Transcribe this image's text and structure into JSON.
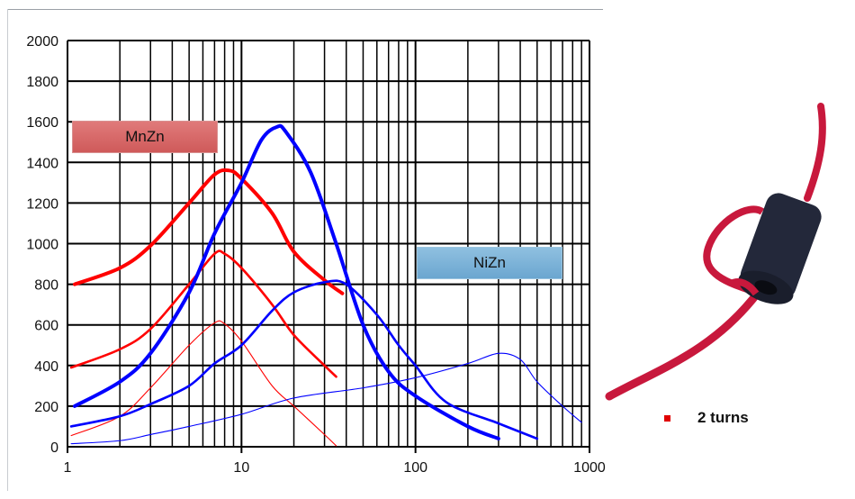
{
  "chart_data": {
    "type": "line",
    "x_scale": "log",
    "xlim": [
      1,
      1000
    ],
    "ylim": [
      0,
      2000
    ],
    "x_ticks": [
      "1",
      "10",
      "100",
      "1000"
    ],
    "y_ticks": [
      "0",
      "200",
      "400",
      "600",
      "800",
      "1000",
      "1200",
      "1400",
      "1600",
      "1800",
      "2000"
    ],
    "grid": true,
    "annotations": [
      "MnZn",
      "NiZn"
    ],
    "series": [
      {
        "color": "#ff0000",
        "width": "thick",
        "points": [
          [
            1.1,
            800
          ],
          [
            2,
            880
          ],
          [
            3,
            990
          ],
          [
            5,
            1200
          ],
          [
            7,
            1340
          ],
          [
            8.5,
            1360
          ],
          [
            10,
            1320
          ],
          [
            15,
            1150
          ],
          [
            20,
            960
          ],
          [
            30,
            820
          ],
          [
            38,
            755
          ]
        ]
      },
      {
        "color": "#ff0000",
        "width": "medium",
        "points": [
          [
            1.05,
            390
          ],
          [
            2,
            480
          ],
          [
            3,
            580
          ],
          [
            5,
            800
          ],
          [
            7,
            950
          ],
          [
            8,
            950
          ],
          [
            10,
            880
          ],
          [
            15,
            700
          ],
          [
            20,
            550
          ],
          [
            30,
            400
          ],
          [
            35,
            345
          ]
        ]
      },
      {
        "color": "#ff0000",
        "width": "thin",
        "points": [
          [
            1.05,
            55
          ],
          [
            2,
            150
          ],
          [
            3,
            290
          ],
          [
            5,
            500
          ],
          [
            7,
            610
          ],
          [
            8,
            605
          ],
          [
            10,
            520
          ],
          [
            15,
            300
          ],
          [
            20,
            200
          ],
          [
            30,
            60
          ],
          [
            35,
            5
          ]
        ]
      },
      {
        "color": "#0000ff",
        "width": "thick",
        "points": [
          [
            1.1,
            200
          ],
          [
            2,
            320
          ],
          [
            3,
            460
          ],
          [
            5,
            760
          ],
          [
            7,
            1050
          ],
          [
            10,
            1300
          ],
          [
            13,
            1510
          ],
          [
            16,
            1575
          ],
          [
            18,
            1550
          ],
          [
            25,
            1350
          ],
          [
            35,
            1000
          ],
          [
            50,
            600
          ],
          [
            70,
            370
          ],
          [
            100,
            250
          ],
          [
            200,
            100
          ],
          [
            300,
            40
          ]
        ]
      },
      {
        "color": "#0000ff",
        "width": "medium",
        "points": [
          [
            1.05,
            100
          ],
          [
            2,
            150
          ],
          [
            3,
            210
          ],
          [
            5,
            300
          ],
          [
            7,
            410
          ],
          [
            10,
            500
          ],
          [
            15,
            670
          ],
          [
            20,
            760
          ],
          [
            30,
            810
          ],
          [
            40,
            800
          ],
          [
            60,
            650
          ],
          [
            80,
            500
          ],
          [
            100,
            400
          ],
          [
            150,
            220
          ],
          [
            300,
            115
          ],
          [
            500,
            40
          ]
        ]
      },
      {
        "color": "#0000ff",
        "width": "thin",
        "points": [
          [
            1.05,
            15
          ],
          [
            2,
            30
          ],
          [
            3,
            60
          ],
          [
            5,
            100
          ],
          [
            10,
            160
          ],
          [
            20,
            240
          ],
          [
            50,
            290
          ],
          [
            100,
            340
          ],
          [
            200,
            410
          ],
          [
            300,
            460
          ],
          [
            400,
            430
          ],
          [
            500,
            320
          ],
          [
            700,
            200
          ],
          [
            900,
            120
          ]
        ]
      }
    ]
  },
  "labels": {
    "mnzn": "MnZn",
    "nizn": "NiZn"
  },
  "photo": {
    "caption": "2 turns",
    "bullet_color": "#e00000"
  }
}
